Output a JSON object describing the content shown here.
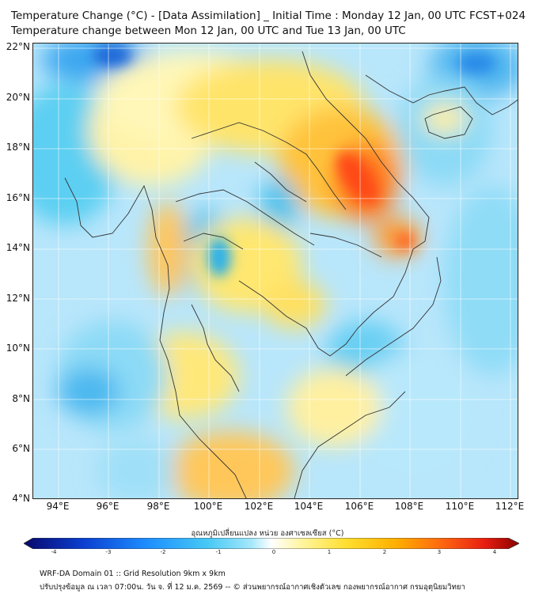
{
  "title": {
    "line1": "Temperature Change (°C) - [Data Assimilation] _ Initial Time : Monday 12 Jan, 00 UTC FCST+024",
    "line2": "Temperature change between Mon 12 Jan, 00 UTC and Tue 13 Jan, 00 UTC"
  },
  "map": {
    "lat_labels": [
      "22°N",
      "20°N",
      "18°N",
      "16°N",
      "14°N",
      "12°N",
      "10°N",
      "8°N",
      "6°N",
      "4°N"
    ],
    "lon_labels": [
      "94°E",
      "96°E",
      "98°E",
      "100°E",
      "102°E",
      "104°E",
      "106°E",
      "108°E",
      "110°E",
      "112°E"
    ],
    "lat_range": [
      4,
      22
    ],
    "lon_range": [
      93,
      112.2
    ],
    "gridlines": true
  },
  "colorbar": {
    "title": "อุณหภูมิเปลี่ยนแปลง หน่วย องศาเซลเซียส (°C)",
    "ticks": [
      "-4",
      "-3",
      "-2",
      "-1",
      "0",
      "1",
      "2",
      "3",
      "4"
    ],
    "range": [
      -4,
      4
    ],
    "colors": [
      "#08086b",
      "#0b3fd0",
      "#1e8fff",
      "#46c8f5",
      "#a6e8fb",
      "#ffffff",
      "#fff5a0",
      "#ffdf30",
      "#ffb000",
      "#ff6a10",
      "#e81e10",
      "#8a0000"
    ]
  },
  "footer": {
    "line1": "WRF-DA Domain 01 :: Grid Resolution 9km x 9km",
    "line2": "ปรับปรุงข้อมูล ณ เวลา 07:00น. วัน จ. ที่ 12 ม.ค. 2569 -- © ส่วนพยากรณ์อากาศเชิงตัวเลข กองพยากรณ์อากาศ กรมอุตุนิยมวิทยา"
  }
}
